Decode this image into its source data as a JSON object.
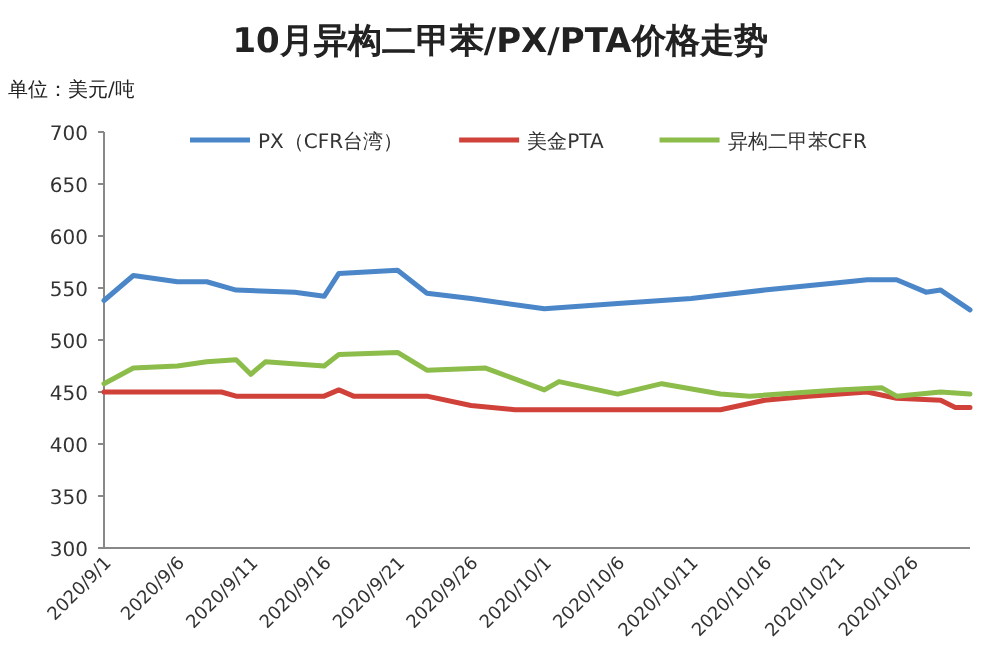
{
  "chart_data": {
    "type": "line",
    "title": "10月异构二甲苯/PX/PTA价格走势",
    "ylabel": "单位：美元/吨",
    "xlim": [
      "2020-09-01",
      "2020-10-30"
    ],
    "ylim": [
      300,
      700
    ],
    "yticks": [
      300,
      350,
      400,
      450,
      500,
      550,
      600,
      650,
      700
    ],
    "xticks": [
      {
        "value": "2020-09-01",
        "label": "2020/9/1"
      },
      {
        "value": "2020-09-06",
        "label": "2020/9/6"
      },
      {
        "value": "2020-09-11",
        "label": "2020/9/11"
      },
      {
        "value": "2020-09-16",
        "label": "2020/9/16"
      },
      {
        "value": "2020-09-21",
        "label": "2020/9/21"
      },
      {
        "value": "2020-09-26",
        "label": "2020/9/26"
      },
      {
        "value": "2020-10-01",
        "label": "2020/10/1"
      },
      {
        "value": "2020-10-06",
        "label": "2020/10/6"
      },
      {
        "value": "2020-10-11",
        "label": "2020/10/11"
      },
      {
        "value": "2020-10-16",
        "label": "2020/10/16"
      },
      {
        "value": "2020-10-21",
        "label": "2020/10/21"
      },
      {
        "value": "2020-10-26",
        "label": "2020/10/26"
      }
    ],
    "legend": "top",
    "series": [
      {
        "name": "PX（CFR台湾）",
        "color": "#4a86c8",
        "x": [
          "2020-09-01",
          "2020-09-03",
          "2020-09-06",
          "2020-09-08",
          "2020-09-10",
          "2020-09-14",
          "2020-09-16",
          "2020-09-17",
          "2020-09-21",
          "2020-09-23",
          "2020-09-26",
          "2020-10-01",
          "2020-10-06",
          "2020-10-11",
          "2020-10-16",
          "2020-10-21",
          "2020-10-23",
          "2020-10-25",
          "2020-10-27",
          "2020-10-28",
          "2020-10-30"
        ],
        "values": [
          538,
          562,
          556,
          556,
          548,
          546,
          542,
          564,
          567,
          545,
          540,
          530,
          535,
          540,
          548,
          555,
          558,
          558,
          546,
          548,
          529
        ]
      },
      {
        "name": "美金PTA",
        "color": "#d0413a",
        "x": [
          "2020-09-01",
          "2020-09-09",
          "2020-09-10",
          "2020-09-16",
          "2020-09-17",
          "2020-09-18",
          "2020-09-23",
          "2020-09-26",
          "2020-09-29",
          "2020-10-13",
          "2020-10-16",
          "2020-10-19",
          "2020-10-23",
          "2020-10-25",
          "2020-10-28",
          "2020-10-29",
          "2020-10-30"
        ],
        "values": [
          450,
          450,
          446,
          446,
          452,
          446,
          446,
          437,
          433,
          433,
          442,
          446,
          450,
          444,
          442,
          435,
          435
        ]
      },
      {
        "name": "异构二甲苯CFR",
        "color": "#8cbc4a",
        "x": [
          "2020-09-01",
          "2020-09-03",
          "2020-09-06",
          "2020-09-08",
          "2020-09-10",
          "2020-09-11",
          "2020-09-12",
          "2020-09-16",
          "2020-09-17",
          "2020-09-21",
          "2020-09-23",
          "2020-09-27",
          "2020-10-01",
          "2020-10-02",
          "2020-10-06",
          "2020-10-09",
          "2020-10-13",
          "2020-10-15",
          "2020-10-21",
          "2020-10-24",
          "2020-10-25",
          "2020-10-28",
          "2020-10-30"
        ],
        "values": [
          458,
          473,
          475,
          479,
          481,
          467,
          479,
          475,
          486,
          488,
          471,
          473,
          452,
          460,
          448,
          458,
          448,
          446,
          452,
          454,
          446,
          450,
          448
        ]
      }
    ]
  }
}
